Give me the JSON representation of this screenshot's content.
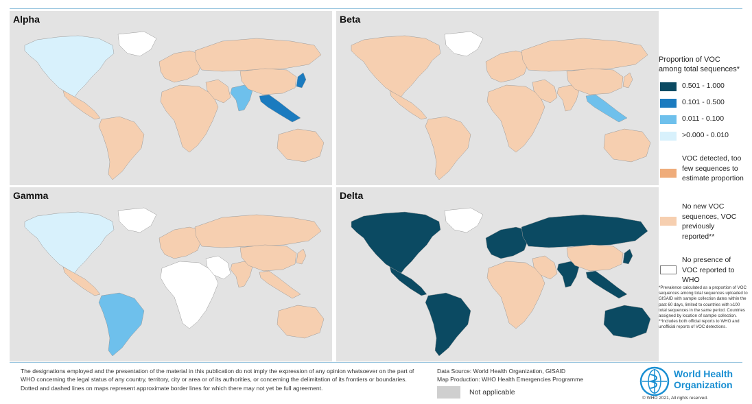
{
  "colors": {
    "water": "#e3e3e3",
    "c_high": "#0b4a62",
    "c_mid": "#1b7bbf",
    "c_low": "#6ec0ec",
    "c_vlow": "#d8f1fc",
    "c_few": "#efac7a",
    "c_prev": "#f6cfb0",
    "c_none": "#ffffff",
    "c_na": "#cfcfcf"
  },
  "panels": [
    {
      "title": "Alpha",
      "regions": {
        "na": "c_vlow",
        "greenland": "c_none",
        "mex": "c_prev",
        "sa": "c_prev",
        "eu": "c_prev",
        "ru": "c_prev",
        "af": "c_prev",
        "me": "c_prev",
        "in": "c_low",
        "cn": "c_prev",
        "sea": "c_mid",
        "jp": "c_mid",
        "au": "c_prev"
      }
    },
    {
      "title": "Beta",
      "regions": {
        "na": "c_prev",
        "greenland": "c_none",
        "mex": "c_prev",
        "sa": "c_prev",
        "eu": "c_prev",
        "ru": "c_prev",
        "af": "c_prev",
        "me": "c_prev",
        "in": "c_prev",
        "cn": "c_prev",
        "sea": "c_low",
        "jp": "c_prev",
        "au": "c_prev"
      }
    },
    {
      "title": "Gamma",
      "regions": {
        "na": "c_vlow",
        "greenland": "c_none",
        "mex": "c_prev",
        "sa": "c_low",
        "eu": "c_prev",
        "ru": "c_prev",
        "af": "c_none",
        "me": "c_none",
        "in": "c_prev",
        "cn": "c_prev",
        "sea": "c_prev",
        "jp": "c_prev",
        "au": "c_prev"
      }
    },
    {
      "title": "Delta",
      "regions": {
        "na": "c_high",
        "greenland": "c_none",
        "mex": "c_high",
        "sa": "c_high",
        "eu": "c_high",
        "ru": "c_high",
        "af": "c_prev",
        "me": "c_prev",
        "in": "c_high",
        "cn": "c_prev",
        "sea": "c_high",
        "jp": "c_high",
        "au": "c_high"
      }
    }
  ],
  "legend": {
    "title": "Proportion of VOC among total sequences*",
    "items": [
      {
        "label": "0.501 - 1.000",
        "color": "c_high"
      },
      {
        "label": "0.101 - 0.500",
        "color": "c_mid"
      },
      {
        "label": "0.011 - 0.100",
        "color": "c_low"
      },
      {
        "label": ">0.000 - 0.010",
        "color": "c_vlow"
      },
      {
        "label": "VOC detected, too few sequences to estimate proportion",
        "color": "c_few"
      },
      {
        "label": "No new VOC sequences, VOC previously reported**",
        "color": "c_prev"
      },
      {
        "label": "No presence of VOC reported to WHO",
        "color": "c_none"
      }
    ],
    "footnote": "*Prevalence calculated as a proportion of VOC sequences among total sequences uploaded to GISAID with sample collection dates within the past 60 days, limited to countries with ≥100 total sequences in the same period. Countries assigned by location of sample collection. **Includes both official reports to WHO and unofficial reports of VOC detections."
  },
  "disclaimer": "The designations employed and the presentation of the material in this publication do not imply the expression of any opinion whatsoever on the part of WHO concerning the legal status of any country, territory, city or area or of its authorities, or concerning the delimitation of its frontiers or boundaries. Dotted and dashed lines on maps represent approximate border lines for which there may not yet be full agreement.",
  "data_source": "Data Source: World Health Organization, GISAID",
  "map_production": "Map Production: WHO Health Emergencies Programme",
  "not_applicable": "Not applicable",
  "who_name_line1": "World Health",
  "who_name_line2": "Organization",
  "copyright": "© WHO 2021, All rights reserved."
}
